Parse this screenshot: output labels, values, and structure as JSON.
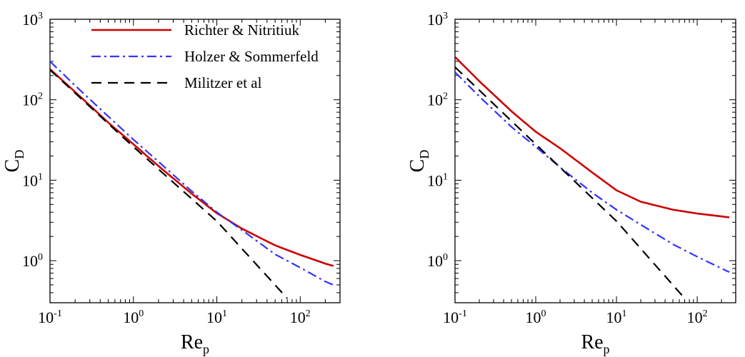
{
  "chart_data": [
    {
      "type": "line",
      "xscale": "log",
      "yscale": "log",
      "xlim": [
        0.1,
        300
      ],
      "ylim": [
        0.3,
        1000
      ],
      "xlabel": {
        "main": "Re",
        "sub": "p"
      },
      "ylabel": {
        "main": "C",
        "sub": "D"
      },
      "xticks": [
        {
          "base": "10",
          "exp": "-1",
          "value": 0.1
        },
        {
          "base": "10",
          "exp": "0",
          "value": 1
        },
        {
          "base": "10",
          "exp": "1",
          "value": 10
        },
        {
          "base": "10",
          "exp": "2",
          "value": 100
        }
      ],
      "yticks": [
        {
          "base": "10",
          "exp": "0",
          "value": 1
        },
        {
          "base": "10",
          "exp": "1",
          "value": 10
        },
        {
          "base": "10",
          "exp": "2",
          "value": 100
        },
        {
          "base": "10",
          "exp": "3",
          "value": 1000
        }
      ],
      "legend": {
        "position": "top-right",
        "show": true
      },
      "grid": false,
      "series": [
        {
          "name": "Richter & Nitritiuk",
          "color": "#cc0000",
          "style": "solid",
          "x": [
            0.1,
            0.2,
            0.5,
            1,
            2,
            5,
            10,
            20,
            50,
            100,
            200,
            250
          ],
          "y": [
            240,
            125,
            52,
            28,
            15,
            6.8,
            3.9,
            2.5,
            1.55,
            1.18,
            0.92,
            0.86
          ]
        },
        {
          "name": "Holzer & Sommerfeld",
          "color": "#3333ff",
          "style": "dashdot",
          "x": [
            0.1,
            0.2,
            0.5,
            1,
            2,
            5,
            10,
            20,
            50,
            100,
            200,
            250
          ],
          "y": [
            300,
            150,
            62,
            32,
            17,
            7.3,
            4.0,
            2.4,
            1.2,
            0.82,
            0.55,
            0.5
          ]
        },
        {
          "name": "Militzer et al",
          "color": "#000000",
          "style": "dashed",
          "x": [
            0.1,
            1,
            10,
            70
          ],
          "y": [
            235,
            26,
            3.1,
            0.34
          ]
        }
      ]
    },
    {
      "type": "line",
      "xscale": "log",
      "yscale": "log",
      "xlim": [
        0.1,
        300
      ],
      "ylim": [
        0.3,
        1000
      ],
      "xlabel": {
        "main": "Re",
        "sub": "p"
      },
      "ylabel": {
        "main": "C",
        "sub": "D"
      },
      "xticks": [
        {
          "base": "10",
          "exp": "-1",
          "value": 0.1
        },
        {
          "base": "10",
          "exp": "0",
          "value": 1
        },
        {
          "base": "10",
          "exp": "1",
          "value": 10
        },
        {
          "base": "10",
          "exp": "2",
          "value": 100
        }
      ],
      "yticks": [
        {
          "base": "10",
          "exp": "0",
          "value": 1
        },
        {
          "base": "10",
          "exp": "1",
          "value": 10
        },
        {
          "base": "10",
          "exp": "2",
          "value": 100
        },
        {
          "base": "10",
          "exp": "3",
          "value": 1000
        }
      ],
      "legend": {
        "show": false
      },
      "grid": false,
      "series": [
        {
          "name": "Richter & Nitritiuk",
          "color": "#cc0000",
          "style": "solid",
          "x": [
            0.1,
            0.2,
            0.5,
            1,
            2,
            5,
            10,
            20,
            50,
            100,
            200,
            250
          ],
          "y": [
            340,
            170,
            72,
            40,
            25,
            12.5,
            7.5,
            5.4,
            4.3,
            3.85,
            3.55,
            3.45
          ]
        },
        {
          "name": "Holzer & Sommerfeld",
          "color": "#3333ff",
          "style": "dashdot",
          "x": [
            0.1,
            0.2,
            0.5,
            1,
            2,
            5,
            10,
            20,
            50,
            100,
            200,
            250
          ],
          "y": [
            220,
            110,
            46,
            26,
            14.5,
            7.0,
            4.3,
            2.8,
            1.6,
            1.12,
            0.8,
            0.72
          ]
        },
        {
          "name": "Militzer et al",
          "color": "#000000",
          "style": "dashed",
          "x": [
            0.1,
            1,
            10,
            70
          ],
          "y": [
            255,
            28,
            3.1,
            0.34
          ]
        }
      ]
    }
  ]
}
